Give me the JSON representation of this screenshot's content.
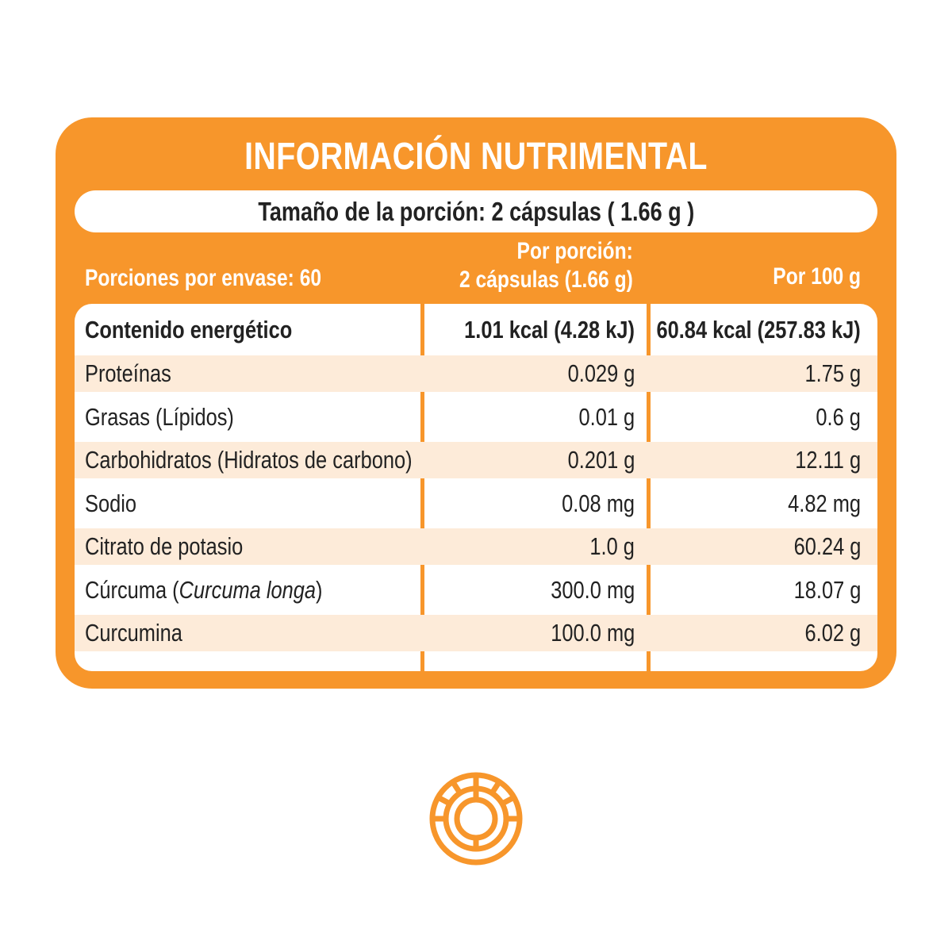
{
  "title": "INFORMACIÓN NUTRIMENTAL",
  "serving_size": "Tamaño de la porción: 2 cápsulas ( 1.66 g )",
  "header": {
    "servings_per_container": "Porciones por envase: 60",
    "per_serving_line1": "Por porción:",
    "per_serving_line2": "2 cápsulas (1.66 g)",
    "per_100g": "Por 100 g"
  },
  "rows": [
    {
      "name": "Contenido energético",
      "per_serving": "1.01 kcal (4.28 kJ)",
      "per_100g": "60.84 kcal (257.83 kJ)"
    },
    {
      "name": "Proteínas",
      "per_serving": "0.029 g",
      "per_100g": "1.75 g"
    },
    {
      "name": "Grasas (Lípidos)",
      "per_serving": "0.01 g",
      "per_100g": "0.6 g"
    },
    {
      "name": "Carbohidratos (Hidratos de carbono)",
      "per_serving": "0.201 g",
      "per_100g": "12.11 g"
    },
    {
      "name": "Sodio",
      "per_serving": "0.08 mg",
      "per_100g": "4.82 mg"
    },
    {
      "name": "Citrato de potasio",
      "per_serving": "1.0 g",
      "per_100g": "60.24 g"
    },
    {
      "name": "Cúrcuma",
      "name_italic": "Curcuma longa",
      "per_serving": "300.0 mg",
      "per_100g": "18.07 g"
    },
    {
      "name": "Curcumina",
      "per_serving": "100.0 mg",
      "per_100g": "6.02 g"
    }
  ],
  "colors": {
    "accent": "#F7962B",
    "stripe": "#FDEBD9"
  },
  "icons": {
    "logo": "circular-segmented-ring-icon"
  }
}
